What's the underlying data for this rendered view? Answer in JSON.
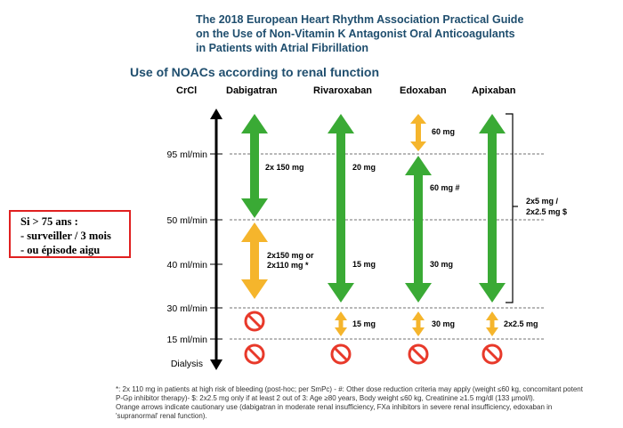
{
  "title": {
    "line1": "The 2018 European Heart Rhythm Association Practical Guide",
    "line2": "on the Use of Non-Vitamin K Antagonist Oral Anticoagulants",
    "line3": "in Patients with Atrial Fibrillation"
  },
  "subtitle": "Use of NOACs according to renal function",
  "columns": {
    "crcl": "CrCl",
    "dabigatran": "Dabigatran",
    "rivaroxaban": "Rivaroxaban",
    "edoxaban": "Edoxaban",
    "apixaban": "Apixaban"
  },
  "thresholds": {
    "t95": "95 ml/min",
    "t50": "50 ml/min",
    "t40": "40 ml/min",
    "t30": "30 ml/min",
    "t15": "15 ml/min",
    "dialysis": "Dialysis"
  },
  "doses": {
    "dabigatran_high": "2x 150 mg",
    "dabigatran_mid_1": "2x150 mg or",
    "dabigatran_mid_2": "2x110 mg *",
    "rivaroxaban_high": "20 mg",
    "rivaroxaban_mid": "15 mg",
    "rivaroxaban_low": "15 mg",
    "edoxaban_top": "60 mg",
    "edoxaban_high": "60 mg #",
    "edoxaban_mid": "30 mg",
    "edoxaban_low": "30 mg",
    "apixaban_main_1": "2x5 mg /",
    "apixaban_main_2": "2x2.5 mg $",
    "apixaban_low": "2x2.5 mg"
  },
  "note": {
    "line1": "Si > 75 ans :",
    "line2": "- surveiller / 3 mois",
    "line3": "- ou épisode aigu"
  },
  "footnote": {
    "line1": "*: 2x 110 mg in patients at high risk of bleeding (post-hoc; per SmPc) - #: Other dose reduction criteria may apply (weight ≤60 kg, concomitant potent",
    "line2": "P-Gp inhibitor therapy)- $: 2x2.5 mg only if at least 2 out of 3: Age ≥80 years, Body weight ≤60 kg, Creatinine ≥1.5 mg/dl (133 µmol/l).",
    "line3": "Orange arrows indicate cautionary use (dabigatran in moderate renal insufficiency, FXa inhibitors in severe renal insufficiency, edoxaban in",
    "line4": "'supranormal' renal function)."
  },
  "colors": {
    "green": "#3aaa35",
    "orange": "#f5b52c",
    "red": "#e8392a",
    "title": "#1f4e6e"
  }
}
